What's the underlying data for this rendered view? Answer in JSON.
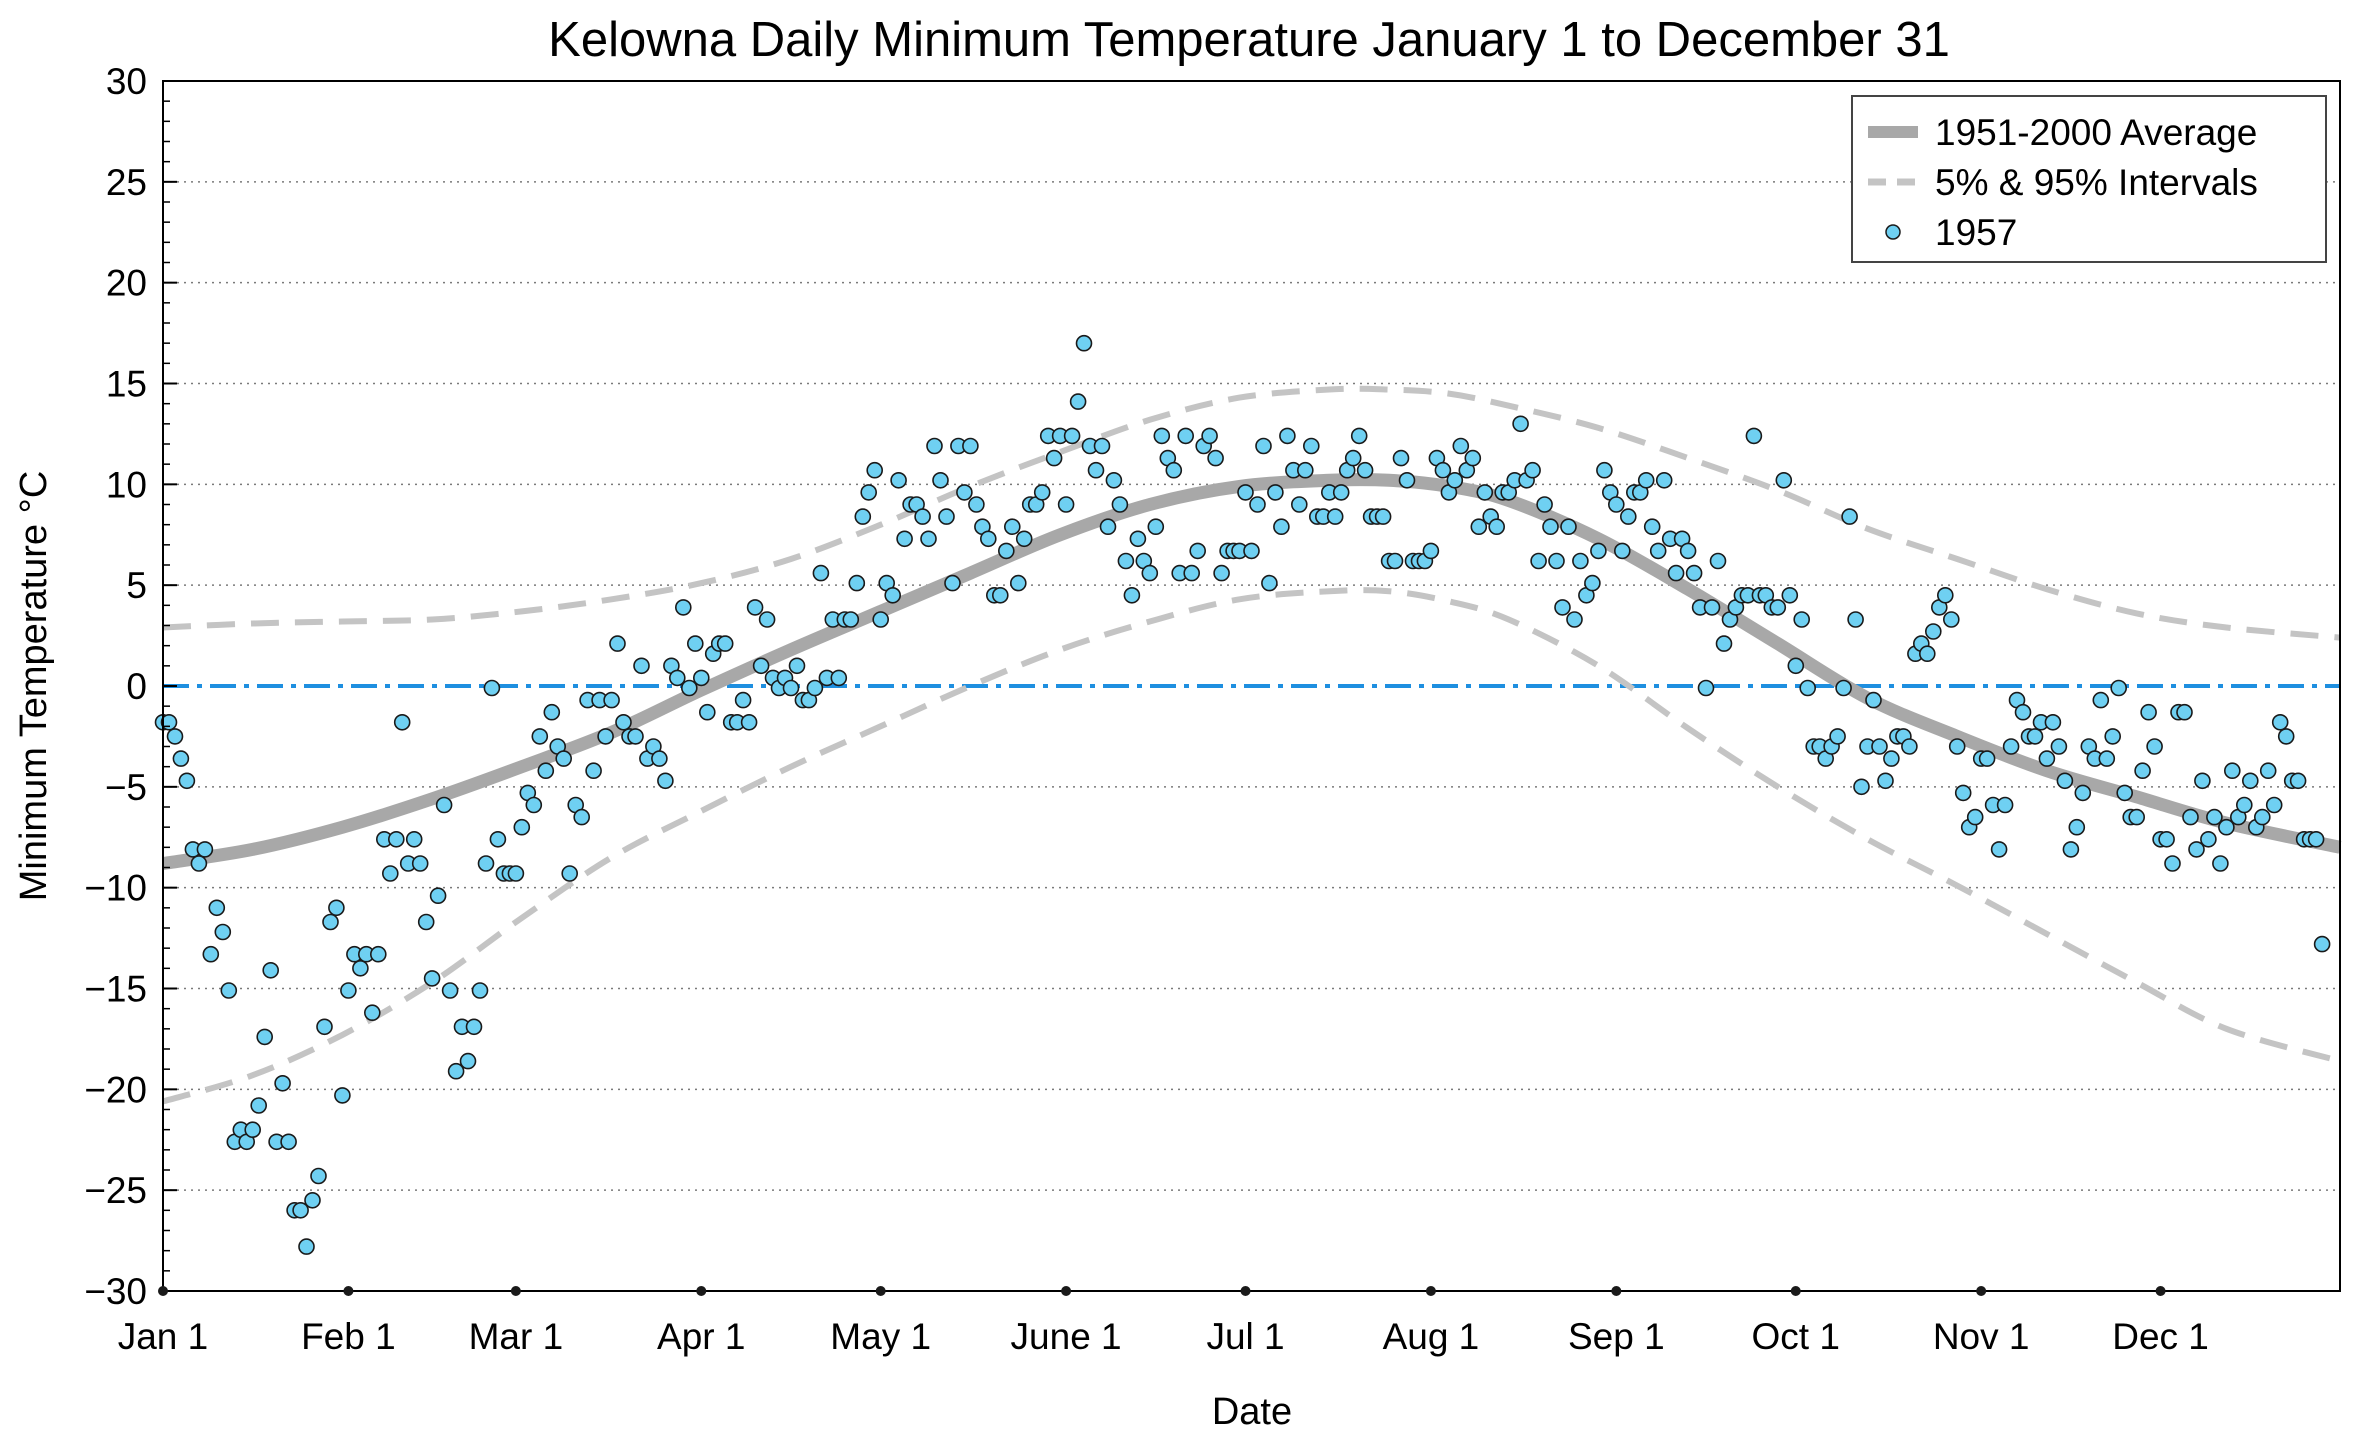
{
  "chart_data": {
    "type": "scatter",
    "title": "Kelowna Daily Minimum Temperature January 1 to December 31",
    "xlabel": "Date",
    "ylabel": "Minimum Temperature °C",
    "ylim": [
      -30,
      30
    ],
    "xlim": [
      0,
      364
    ],
    "yticks": [
      -30,
      -25,
      -20,
      -15,
      -10,
      -5,
      0,
      5,
      10,
      15,
      20,
      25,
      30
    ],
    "ytick_labels": [
      "−30",
      "−25",
      "−20",
      "−15",
      "−10",
      "−5",
      "0",
      "5",
      "10",
      "15",
      "20",
      "25",
      "30"
    ],
    "xticks": [
      {
        "day": 0,
        "label": "Jan 1"
      },
      {
        "day": 31,
        "label": "Feb 1"
      },
      {
        "day": 59,
        "label": "Mar 1"
      },
      {
        "day": 90,
        "label": "Apr 1"
      },
      {
        "day": 120,
        "label": "May 1"
      },
      {
        "day": 151,
        "label": "June 1"
      },
      {
        "day": 181,
        "label": "Jul 1"
      },
      {
        "day": 212,
        "label": "Aug 1"
      },
      {
        "day": 243,
        "label": "Sep 1"
      },
      {
        "day": 273,
        "label": "Oct 1"
      },
      {
        "day": 304,
        "label": "Nov 1"
      },
      {
        "day": 334,
        "label": "Dec 1"
      }
    ],
    "grid": "horizontal dotted",
    "legend_position": "top-right",
    "colors": {
      "average": "#a8a8a8",
      "intervals": "#c4c4c4",
      "points": "#6fd0f2",
      "zero_line": "#1e8fe0"
    },
    "reference_line": {
      "y": 0,
      "style": "dash-dot"
    },
    "series": [
      {
        "name": "1951-2000 Average",
        "style": "thick-line",
        "x": [
          0,
          15,
          30,
          45,
          60,
          75,
          90,
          105,
          120,
          135,
          150,
          165,
          180,
          195,
          205,
          215,
          225,
          240,
          255,
          270,
          285,
          300,
          315,
          330,
          345,
          364
        ],
        "y": [
          -8.8,
          -8.1,
          -7.0,
          -5.6,
          -4.0,
          -2.3,
          -0.2,
          1.8,
          3.7,
          5.6,
          7.5,
          9.0,
          9.9,
          10.2,
          10.2,
          9.9,
          9.2,
          7.3,
          4.8,
          2.1,
          -0.6,
          -2.5,
          -4.2,
          -5.5,
          -6.8,
          -8.0
        ]
      },
      {
        "name": "5% & 95% Intervals",
        "style": "dashed-line",
        "x": [
          0,
          15,
          30,
          45,
          60,
          75,
          90,
          105,
          120,
          135,
          150,
          165,
          180,
          195,
          205,
          215,
          225,
          240,
          255,
          270,
          285,
          300,
          315,
          330,
          345,
          364
        ],
        "y": [
          2.9,
          3.1,
          3.2,
          3.3,
          3.7,
          4.3,
          5.1,
          6.3,
          8.0,
          9.9,
          11.6,
          13.2,
          14.3,
          14.7,
          14.7,
          14.5,
          13.9,
          12.8,
          11.3,
          9.7,
          7.8,
          6.3,
          4.8,
          3.6,
          2.9,
          2.4
        ]
      },
      {
        "name": "",
        "style": "dashed-line",
        "x": [
          0,
          15,
          30,
          45,
          60,
          75,
          90,
          105,
          120,
          135,
          150,
          165,
          180,
          195,
          205,
          215,
          225,
          240,
          255,
          270,
          285,
          300,
          315,
          330,
          345,
          364
        ],
        "y": [
          -20.6,
          -19.3,
          -17.3,
          -14.7,
          -11.5,
          -8.5,
          -6.2,
          -4.0,
          -2.0,
          0.0,
          1.8,
          3.2,
          4.3,
          4.7,
          4.7,
          4.2,
          3.3,
          1.0,
          -2.1,
          -5.0,
          -7.6,
          -9.9,
          -12.3,
          -14.7,
          -17.0,
          -18.6
        ]
      },
      {
        "name": "1957",
        "style": "markers",
        "values": [
          -1.8,
          -1.8,
          -2.5,
          -3.6,
          -4.7,
          -8.1,
          -8.8,
          -8.1,
          -13.3,
          -11.0,
          -12.2,
          -15.1,
          -22.6,
          -22.0,
          -22.6,
          -22.0,
          -20.8,
          -17.4,
          -14.1,
          -22.6,
          -19.7,
          -22.6,
          -26.0,
          -26.0,
          -27.8,
          -25.5,
          -24.3,
          -16.9,
          -11.7,
          -11.0,
          -20.3,
          -15.1,
          -13.3,
          -14.0,
          -13.3,
          -16.2,
          -13.3,
          -7.6,
          -9.3,
          -7.6,
          -1.8,
          -8.8,
          -7.6,
          -8.8,
          -11.7,
          -14.5,
          -10.4,
          -5.9,
          -15.1,
          -19.1,
          -16.9,
          -18.6,
          -16.9,
          -15.1,
          -8.8,
          -0.1,
          -7.6,
          -9.3,
          -9.3,
          -9.3,
          -7.0,
          -5.3,
          -5.9,
          -2.5,
          -4.2,
          -1.3,
          -3.0,
          -3.6,
          -9.3,
          -5.9,
          -6.5,
          -0.7,
          -4.2,
          -0.7,
          -2.5,
          -0.7,
          2.1,
          -1.8,
          -2.5,
          -2.5,
          1.0,
          -3.6,
          -3.0,
          -3.6,
          -4.7,
          1.0,
          0.4,
          3.9,
          -0.1,
          2.1,
          0.4,
          -1.3,
          1.6,
          2.1,
          2.1,
          -1.8,
          -1.8,
          -0.7,
          -1.8,
          3.9,
          1.0,
          3.3,
          0.4,
          -0.1,
          0.4,
          -0.1,
          1.0,
          -0.7,
          -0.7,
          -0.1,
          5.6,
          0.4,
          3.3,
          0.4,
          3.3,
          3.3,
          5.1,
          8.4,
          9.6,
          10.7,
          3.3,
          5.1,
          4.5,
          10.2,
          7.3,
          9.0,
          9.0,
          8.4,
          7.3,
          11.9,
          10.2,
          8.4,
          5.1,
          11.9,
          9.6,
          11.9,
          9.0,
          7.9,
          7.3,
          4.5,
          4.5,
          6.7,
          7.9,
          5.1,
          7.3,
          9.0,
          9.0,
          9.6,
          12.4,
          11.3,
          12.4,
          9.0,
          12.4,
          14.1,
          17.0,
          11.9,
          10.7,
          11.9,
          7.9,
          10.2,
          9.0,
          6.2,
          4.5,
          7.3,
          6.2,
          5.6,
          7.9,
          12.4,
          11.3,
          10.7,
          5.6,
          12.4,
          5.6,
          6.7,
          11.9,
          12.4,
          11.3,
          5.6,
          6.7,
          6.7,
          6.7,
          9.6,
          6.7,
          9.0,
          11.9,
          5.1,
          9.6,
          7.9,
          12.4,
          10.7,
          9.0,
          10.7,
          11.9,
          8.4,
          8.4,
          9.6,
          8.4,
          9.6,
          10.7,
          11.3,
          12.4,
          10.7,
          8.4,
          8.4,
          8.4,
          6.2,
          6.2,
          11.3,
          10.2,
          6.2,
          6.2,
          6.2,
          6.7,
          11.3,
          10.7,
          9.6,
          10.2,
          11.9,
          10.7,
          11.3,
          7.9,
          9.6,
          8.4,
          7.9,
          9.6,
          9.6,
          10.2,
          13.0,
          10.2,
          10.7,
          6.2,
          9.0,
          7.9,
          6.2,
          3.9,
          7.9,
          3.3,
          6.2,
          4.5,
          5.1,
          6.7,
          10.7,
          9.6,
          9.0,
          6.7,
          8.4,
          9.6,
          9.6,
          10.2,
          7.9,
          6.7,
          10.2,
          7.3,
          5.6,
          7.3,
          6.7,
          5.6,
          3.9,
          -0.1,
          3.9,
          6.2,
          2.1,
          3.3,
          3.9,
          4.5,
          4.5,
          12.4,
          4.5,
          4.5,
          3.9,
          3.9,
          10.2,
          4.5,
          1.0,
          3.3,
          -0.1,
          -3.0,
          -3.0,
          -3.6,
          -3.0,
          -2.5,
          -0.1,
          8.4,
          3.3,
          -5.0,
          -3.0,
          -0.7,
          -3.0,
          -4.7,
          -3.6,
          -2.5,
          -2.5,
          -3.0,
          1.6,
          2.1,
          1.6,
          2.7,
          3.9,
          4.5,
          3.3,
          -3.0,
          -5.3,
          -7.0,
          -6.5,
          -3.6,
          -3.6,
          -5.9,
          -8.1,
          -5.9,
          -3.0,
          -0.7,
          -1.3,
          -2.5,
          -2.5,
          -1.8,
          -3.6,
          -1.8,
          -3.0,
          -4.7,
          -8.1,
          -7.0,
          -5.3,
          -3.0,
          -3.6,
          -0.7,
          -3.6,
          -2.5,
          -0.1,
          -5.3,
          -6.5,
          -6.5,
          -4.2,
          -1.3,
          -3.0,
          -7.6,
          -7.6,
          -8.8,
          -1.3,
          -1.3,
          -6.5,
          -8.1,
          -4.7,
          -7.6,
          -6.5,
          -8.8,
          -7.0,
          -4.2,
          -6.5,
          -5.9,
          -4.7,
          -7.0,
          -6.5,
          -4.2,
          -5.9,
          -1.8,
          -2.5,
          -4.7,
          -4.7,
          -7.6,
          -7.6,
          -7.6,
          -12.8
        ]
      }
    ]
  }
}
